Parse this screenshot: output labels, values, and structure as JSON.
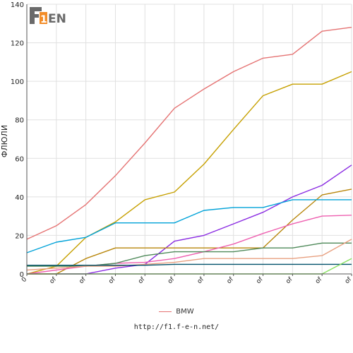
{
  "logo": {
    "text": "F1EN",
    "colors": {
      "dark": "#707070",
      "accent": "#f28c28"
    }
  },
  "chart_data": {
    "type": "line",
    "ylabel": "ФЛЮЛИ",
    "ylim": [
      0,
      140
    ],
    "yticks": [
      0,
      20,
      40,
      60,
      80,
      100,
      120,
      140
    ],
    "x_tick_labels": [
      "0",
      "of",
      "of",
      "of",
      "of",
      "of",
      "of",
      "of",
      "of",
      "of",
      "of",
      "of"
    ],
    "grid": true,
    "legend_position": "bottom",
    "series": [
      {
        "name": "BMW",
        "color": "#e57373",
        "values": [
          18,
          25,
          36,
          51,
          68,
          86,
          96,
          105,
          112,
          114,
          126,
          128
        ]
      },
      {
        "color": "#c6a000",
        "values": [
          0,
          4,
          19,
          27,
          38.5,
          42.5,
          57,
          75,
          92.5,
          98.5,
          98.5,
          105
        ]
      },
      {
        "color": "#8a2be2",
        "values": [
          0,
          0,
          0,
          3,
          5,
          17,
          20,
          26,
          32,
          40,
          46,
          56.5
        ]
      },
      {
        "color": "#b8860b",
        "values": [
          0,
          0,
          8,
          13.5,
          13.5,
          13.5,
          13.5,
          13.5,
          13.5,
          28,
          41,
          44
        ]
      },
      {
        "color": "#00a2d8",
        "values": [
          11,
          16.5,
          19,
          26.5,
          26.5,
          26.5,
          33,
          34.5,
          34.5,
          38.5,
          38.5,
          38.5
        ]
      },
      {
        "color": "#ee60b0",
        "values": [
          0,
          2,
          4,
          5.5,
          6,
          8,
          11.5,
          15.5,
          21,
          26,
          30,
          30.5
        ]
      },
      {
        "color": "#4f8a5a",
        "values": [
          4,
          4,
          4,
          5.5,
          9.5,
          11.5,
          11.5,
          11.5,
          13.5,
          13.5,
          16,
          16
        ]
      },
      {
        "color": "#e8a080",
        "values": [
          2,
          3,
          4,
          4,
          5,
          6,
          8,
          8,
          8,
          8,
          9.5,
          18
        ]
      },
      {
        "color": "#00506a",
        "values": [
          4.5,
          4.5,
          4.5,
          4.5,
          4.5,
          5,
          5,
          5,
          5,
          5,
          5,
          5
        ]
      },
      {
        "color": "#88e060",
        "values": [
          0,
          0,
          0,
          0,
          0,
          0,
          0,
          0,
          0,
          0,
          0,
          8
        ]
      }
    ]
  },
  "legend": {
    "label": "BMW",
    "color": "#e57373"
  },
  "footer": {
    "url": "http://f1.f-e-n.net/"
  }
}
